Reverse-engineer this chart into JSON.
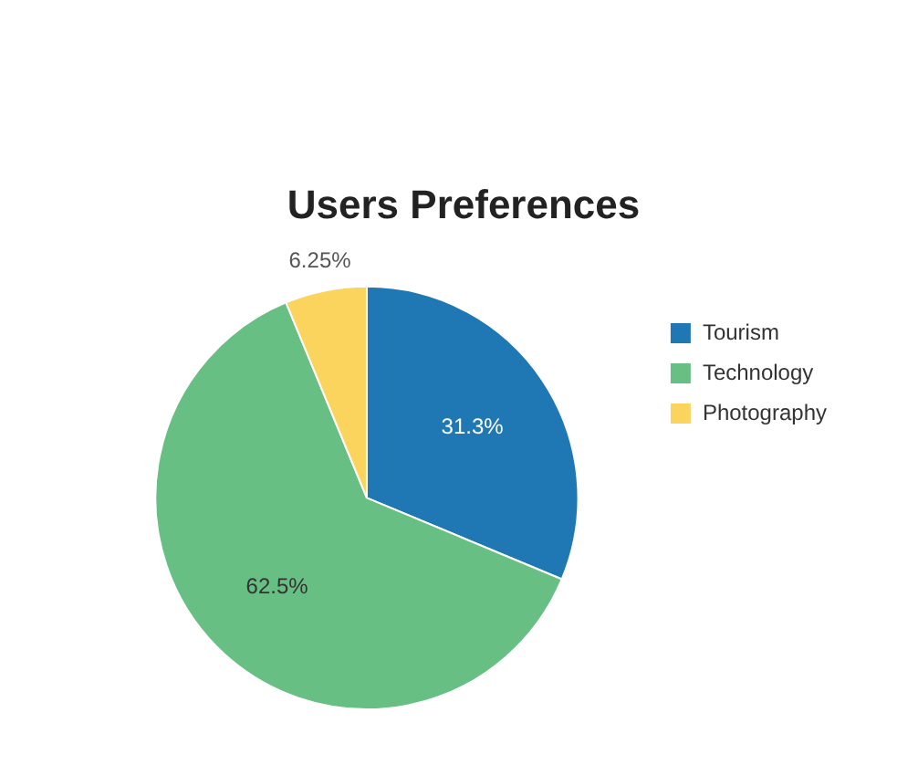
{
  "chart_data": {
    "type": "pie",
    "title": "Users Preferences",
    "categories": [
      "Tourism",
      "Technology",
      "Photography"
    ],
    "values": [
      31.3,
      62.5,
      6.25
    ],
    "value_labels": [
      "31.3%",
      "62.5%",
      "6.25%"
    ],
    "colors": [
      "#1f77b4",
      "#67bf83",
      "#fad45c"
    ],
    "legend": "right"
  }
}
